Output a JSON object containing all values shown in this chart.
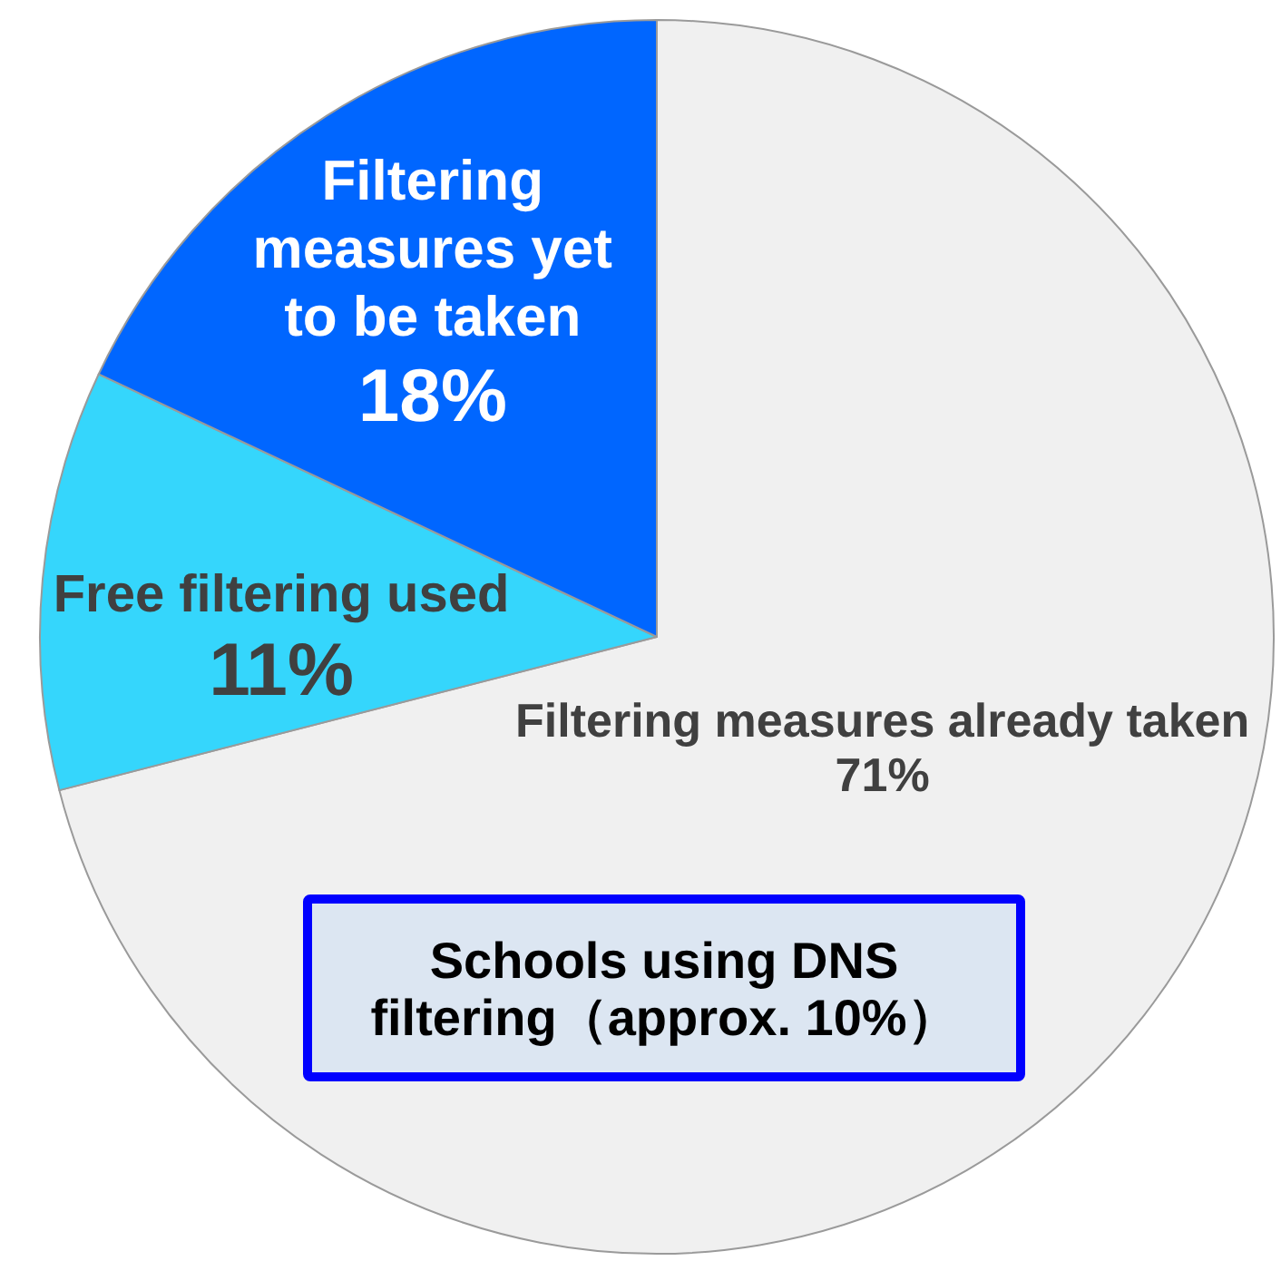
{
  "chart_data": {
    "type": "pie",
    "categories": [
      "Filtering measures already taken",
      "Free filtering used",
      "Filtering measures yet to be taken"
    ],
    "values": [
      71,
      11,
      18
    ],
    "value_labels": [
      "71%",
      "11%",
      "18%"
    ],
    "colors": [
      "#f0f0f0",
      "#35d6fc",
      "#0066ff"
    ],
    "annotations": [
      "Schools using DNS filtering（approx. 10%）"
    ]
  }
}
